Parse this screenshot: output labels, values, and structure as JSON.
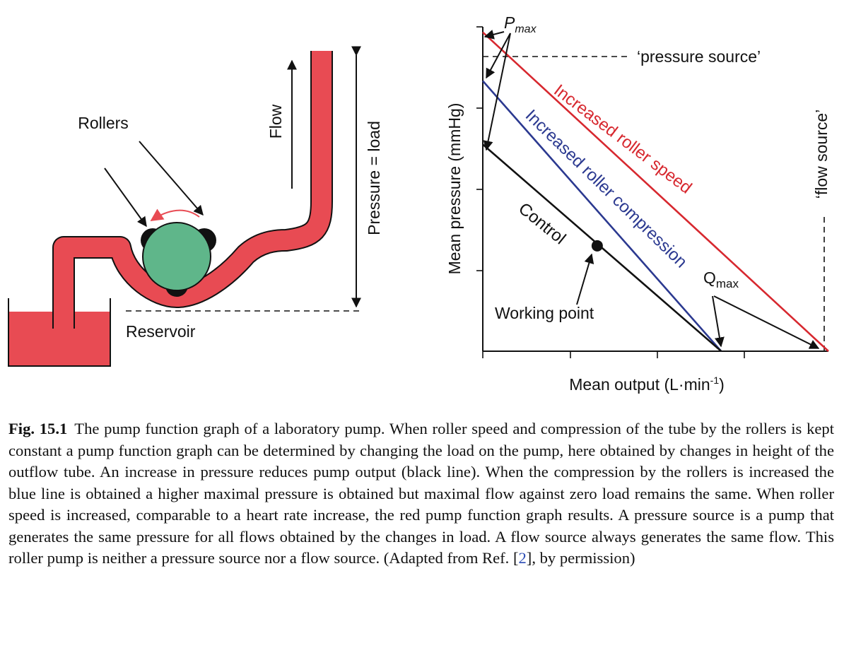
{
  "diagram": {
    "rollers_label": "Rollers",
    "flow_label": "Flow",
    "pressure_load_label": "Pressure = load",
    "reservoir_label": "Reservoir"
  },
  "graph": {
    "y_axis_label": "Mean pressure (mmHg)",
    "x_axis_label_main": "Mean output (L·min",
    "x_axis_label_sup": "-1",
    "x_axis_label_close": ")",
    "pmax_label": "P",
    "pmax_sub": "max",
    "qmax_label": "Q",
    "qmax_sub": "max",
    "pressure_source_label": "‘pressure source’",
    "flow_source_label": "‘flow source’",
    "control_label": "Control",
    "blue_line_label": "Increased roller compression",
    "red_line_label": "Increased roller speed",
    "working_point_label": "Working point",
    "colors": {
      "control": "#111111",
      "compression": "#2b3990",
      "speed": "#d7282f",
      "tube": "#e84b53",
      "roller": "#5fb68a"
    }
  },
  "chart_data": {
    "type": "line",
    "series": [
      {
        "name": "Control",
        "x": [
          0,
          1
        ],
        "y": [
          0.765,
          0
        ]
      },
      {
        "name": "Increased roller compression",
        "x": [
          0,
          1
        ],
        "y": [
          1.0,
          0
        ]
      },
      {
        "name": "Increased roller speed",
        "x": [
          0,
          1.45
        ],
        "y": [
          1.18,
          0
        ]
      }
    ],
    "working_point": {
      "x": 0.48,
      "y": 0.39
    },
    "pressure_source_level": 1.1,
    "flow_source_level": 1.45,
    "xlim": [
      0,
      1.45
    ],
    "ylim": [
      0,
      1.2
    ],
    "grid": false
  },
  "caption": {
    "fig_label": "Fig. 15.1",
    "text_before_ref": "The pump function graph of a laboratory pump. When roller speed and compression of the tube by the rollers is kept constant a pump function graph can be determined by changing the load on the pump, here obtained by changes in height of the outflow tube. An increase in pressure reduces pump output (black line). When the compression by the rollers is increased the blue line is obtained a higher maximal pressure is obtained but maximal flow against zero load remains the same. When roller speed is increased, comparable to a heart rate increase, the red pump function graph results. A pressure source is a pump that generates the same pressure for all flows obtained by the changes in load. A flow source always generates the same flow. This roller pump is neither a pressure source nor a flow source. (Adapted from Ref. [",
    "ref": "2",
    "text_after_ref": "], by permission)"
  }
}
